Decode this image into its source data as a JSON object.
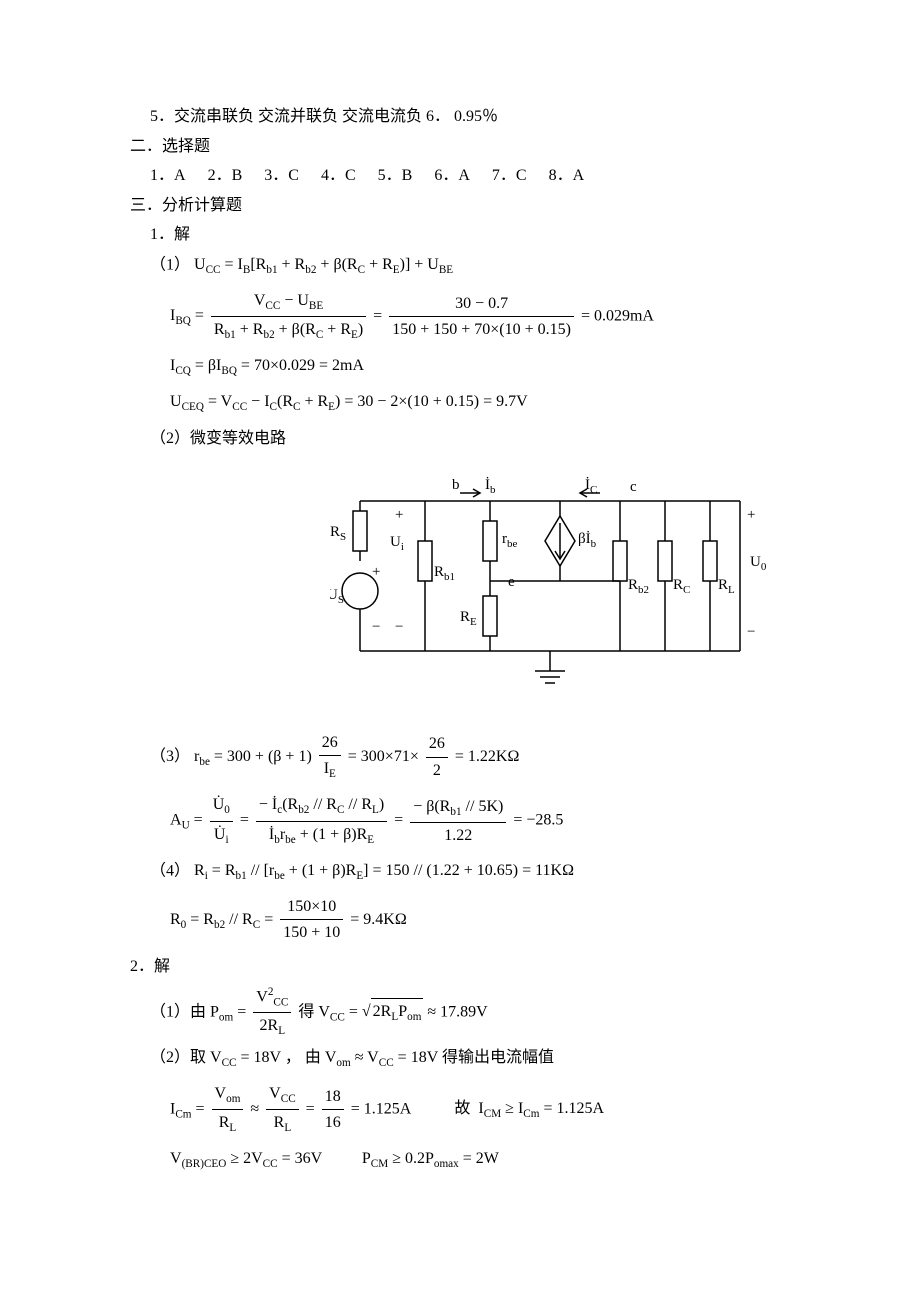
{
  "section1": {
    "line5": "5．交流串联负    交流并联负    交流电流负      6．       0.95％"
  },
  "section2": {
    "title": "二．选择题",
    "items": [
      {
        "n": "1．",
        "a": "A"
      },
      {
        "n": "2．",
        "a": "B"
      },
      {
        "n": "3．",
        "a": "C"
      },
      {
        "n": "4．",
        "a": "C"
      },
      {
        "n": "5．",
        "a": "B"
      },
      {
        "n": "6．",
        "a": "A"
      },
      {
        "n": "7．",
        "a": "C"
      },
      {
        "n": "8．",
        "a": "A"
      }
    ]
  },
  "section3": {
    "title": "三．分析计算题",
    "p1": {
      "label": "1．解",
      "eq1_label": "（1）",
      "eq1": "U_CC = I_B[R_b1 + R_b2 + β(R_c + R_E)] + U_BE",
      "eq2_lhs": "I_BQ =",
      "eq2_num1": "V_CC − U_BE",
      "eq2_den1": "R_b1 + R_b2 + β(R_c + R_E)",
      "eq2_num2": "30 − 0.7",
      "eq2_den2": "150 + 150 + 70×(10 + 0.15)",
      "eq2_result": "= 0.029mA",
      "eq3": "I_CQ = βI_BQ = 70×0.029 = 2mA",
      "eq4": "U_CEQ = V_CC − I_C(R_C + R_E) = 30 − 2×(10 + 0.15) = 9.7V",
      "part2": "（2）微变等效电路",
      "diagram": {
        "labels": {
          "b": "b",
          "Ib": "İ_b",
          "Ic": "İ_c",
          "c": "c",
          "plus": "+",
          "minus": "−",
          "Rs": "R_S",
          "Ui": "U_i",
          "rbe": "r_be",
          "bIb": "βİ_b",
          "Uo": "U_0",
          "Rb1": "R_b1",
          "e": "e",
          "Rb2": "R_b2",
          "Rc": "R_C",
          "RL": "R_L",
          "RE": "R_E",
          "Us": "U_S"
        }
      },
      "eq5_label": "（3）",
      "eq5_lhs": "r_be = 300 + (β + 1)",
      "eq5_num": "26",
      "eq5_den": "I_E",
      "eq5_mid": "= 300×71×",
      "eq5_num2": "26",
      "eq5_den2": "2",
      "eq5_res": "= 1.22KΩ",
      "eq6_lhs": "A_U =",
      "eq6_num1": "U̇_0",
      "eq6_den1": "U̇_i",
      "eq6_num2": "− İ_c(R_b2 // R_C // R_L)",
      "eq6_den2": "İ_b r_be + (1 + β)R_E",
      "eq6_num3": "− β(R_b1 // 5K)",
      "eq6_den3": "1.22",
      "eq6_res": "= −28.5",
      "eq7_label": "（4）",
      "eq7": "R_i = R_b1 // [r_be + (1 + β)R_E] = 150 // (1.22 + 10.65) = 11KΩ",
      "eq8_lhs": "R_0 = R_b2 // R_C =",
      "eq8_num": "150×10",
      "eq8_den": "150 + 10",
      "eq8_res": "= 9.4KΩ"
    },
    "p2": {
      "label": "2．解",
      "eq1_label": "（1）由",
      "eq1_lhs": "P_om =",
      "eq1_num": "V²_CC",
      "eq1_den": "2R_L",
      "eq1_mid": "    得    ",
      "eq1_rhs1": "V_CC = ",
      "eq1_sqrt": "2R_L P_om",
      "eq1_res": "≈ 17.89V",
      "eq2_a": "（2）取",
      "eq2_b": "V_CC = 18V",
      "eq2_c": "，    由",
      "eq2_d": "V_om ≈ V_CC = 18V",
      "eq2_e": "得输出电流幅值",
      "eq3_lhs": "I_Cm =",
      "eq3_num1": "V_om",
      "eq3_den1": "R_L",
      "eq3_mid": "≈",
      "eq3_num2": "V_CC",
      "eq3_den2": "R_L",
      "eq3_mid2": "=",
      "eq3_num3": "18",
      "eq3_den3": "16",
      "eq3_res": "= 1.125A",
      "eq3_tail": "        故    I_CM ≥ I_Cm = 1.125A",
      "eq4": "V_(BR)CEO ≥ 2V_CC = 36V            P_CM ≥ 0.2P_omax = 2W"
    }
  }
}
